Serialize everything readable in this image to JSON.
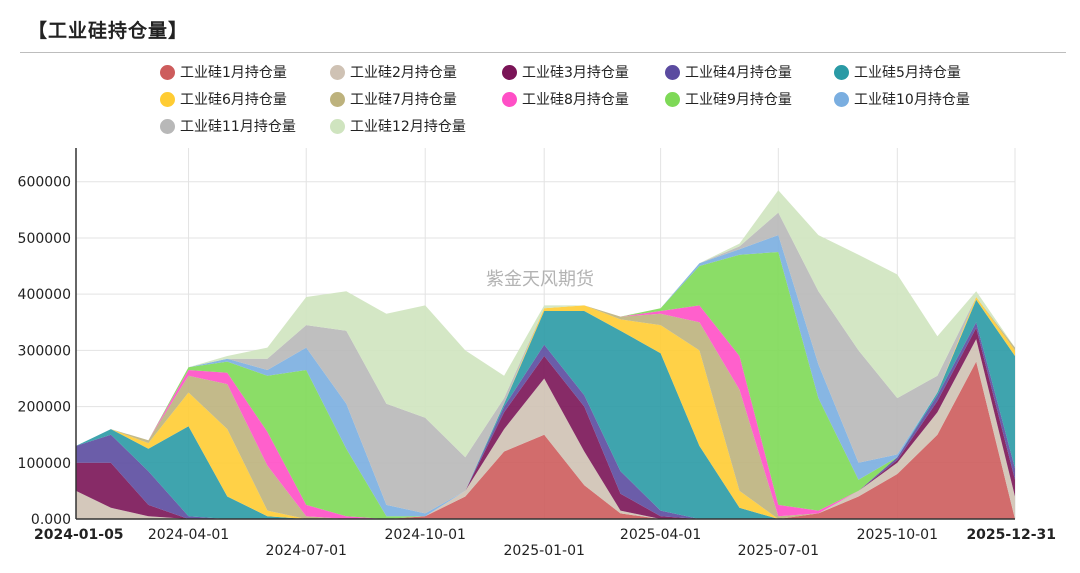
{
  "title": "【工业硅持仓量】",
  "watermark": "紫金天风期货",
  "chart_data": {
    "type": "area",
    "stacked": true,
    "title": "【工业硅持仓量】",
    "xlabel": "",
    "ylabel": "",
    "ylim": [
      0,
      660000
    ],
    "yticks": [
      "0.000",
      "100000",
      "200000",
      "300000",
      "400000",
      "500000",
      "600000"
    ],
    "ytick_values": [
      0,
      100000,
      200000,
      300000,
      400000,
      500000,
      600000
    ],
    "x_start": "2024-01-05",
    "x_end": "2025-12-31",
    "xticks": [
      "2024-01-05",
      "2024-04-01",
      "2024-07-01",
      "2024-10-01",
      "2025-01-01",
      "2025-04-01",
      "2025-07-01",
      "2025-10-01",
      "2025-12-31"
    ],
    "grid": true,
    "legend_position": "top",
    "x": [
      "2024-01-05",
      "2024-02-01",
      "2024-03-01",
      "2024-04-01",
      "2024-05-01",
      "2024-06-01",
      "2024-07-01",
      "2024-08-01",
      "2024-09-01",
      "2024-10-01",
      "2024-11-01",
      "2024-12-01",
      "2025-01-01",
      "2025-02-01",
      "2025-03-01",
      "2025-04-01",
      "2025-05-01",
      "2025-06-01",
      "2025-07-01",
      "2025-08-01",
      "2025-09-01",
      "2025-10-01",
      "2025-11-01",
      "2025-12-01",
      "2025-12-31"
    ],
    "series": [
      {
        "name": "工业硅1月持仓量",
        "color": "#cd5c5c",
        "values": [
          0,
          0,
          0,
          0,
          0,
          0,
          0,
          0,
          0,
          5000,
          40000,
          120000,
          150000,
          60000,
          10000,
          0,
          0,
          0,
          0,
          10000,
          40000,
          80000,
          150000,
          280000,
          0
        ]
      },
      {
        "name": "工业硅2月持仓量",
        "color": "#cfc2b4",
        "values": [
          50000,
          20000,
          5000,
          0,
          0,
          0,
          0,
          0,
          0,
          0,
          10000,
          40000,
          100000,
          60000,
          5000,
          0,
          0,
          0,
          0,
          0,
          10000,
          20000,
          40000,
          40000,
          40000
        ]
      },
      {
        "name": "工业硅3月持仓量",
        "color": "#7a1457",
        "values": [
          50000,
          80000,
          20000,
          0,
          0,
          0,
          0,
          0,
          0,
          0,
          0,
          30000,
          40000,
          80000,
          30000,
          5000,
          0,
          0,
          0,
          0,
          0,
          5000,
          20000,
          20000,
          30000
        ]
      },
      {
        "name": "工业硅4月持仓量",
        "color": "#5b4ba0",
        "values": [
          30000,
          50000,
          60000,
          5000,
          0,
          0,
          0,
          0,
          0,
          0,
          0,
          10000,
          20000,
          20000,
          40000,
          10000,
          0,
          0,
          0,
          0,
          0,
          5000,
          10000,
          10000,
          20000
        ]
      },
      {
        "name": "工业硅5月持仓量",
        "color": "#2a9aa5",
        "values": [
          0,
          10000,
          40000,
          160000,
          40000,
          5000,
          0,
          0,
          0,
          0,
          0,
          5000,
          60000,
          150000,
          250000,
          280000,
          130000,
          20000,
          0,
          0,
          0,
          0,
          5000,
          40000,
          200000
        ]
      },
      {
        "name": "工业硅6月持仓量",
        "color": "#ffcc33",
        "values": [
          0,
          0,
          10000,
          60000,
          120000,
          10000,
          0,
          0,
          0,
          0,
          0,
          0,
          5000,
          10000,
          20000,
          50000,
          170000,
          30000,
          0,
          0,
          0,
          0,
          0,
          5000,
          10000
        ]
      },
      {
        "name": "工业硅7月持仓量",
        "color": "#bdb27d",
        "values": [
          0,
          0,
          5000,
          30000,
          80000,
          80000,
          5000,
          0,
          0,
          0,
          0,
          0,
          0,
          0,
          5000,
          20000,
          50000,
          180000,
          5000,
          0,
          0,
          0,
          0,
          0,
          5000
        ]
      },
      {
        "name": "工业硅8月持仓量",
        "color": "#ff4fc6",
        "values": [
          0,
          0,
          0,
          10000,
          20000,
          60000,
          20000,
          5000,
          0,
          0,
          0,
          0,
          0,
          0,
          0,
          5000,
          30000,
          60000,
          20000,
          5000,
          0,
          0,
          0,
          0,
          0
        ]
      },
      {
        "name": "工业硅9月持仓量",
        "color": "#7ed957",
        "values": [
          0,
          0,
          0,
          5000,
          20000,
          100000,
          240000,
          120000,
          5000,
          0,
          0,
          0,
          0,
          0,
          0,
          5000,
          70000,
          180000,
          450000,
          200000,
          20000,
          0,
          0,
          0,
          0
        ]
      },
      {
        "name": "工业硅10月持仓量",
        "color": "#7aaee0",
        "values": [
          0,
          0,
          0,
          0,
          5000,
          10000,
          40000,
          80000,
          20000,
          5000,
          0,
          0,
          0,
          0,
          0,
          0,
          5000,
          10000,
          30000,
          60000,
          30000,
          5000,
          0,
          0,
          0
        ]
      },
      {
        "name": "工业硅11月持仓量",
        "color": "#b8b8b8",
        "values": [
          0,
          0,
          0,
          0,
          0,
          20000,
          40000,
          130000,
          180000,
          170000,
          60000,
          10000,
          0,
          0,
          0,
          0,
          0,
          5000,
          40000,
          130000,
          200000,
          100000,
          30000,
          0,
          0
        ]
      },
      {
        "name": "工业硅12月持仓量",
        "color": "#cfe4bf",
        "values": [
          0,
          0,
          0,
          0,
          5000,
          20000,
          50000,
          70000,
          160000,
          200000,
          190000,
          40000,
          5000,
          0,
          0,
          0,
          0,
          5000,
          40000,
          100000,
          170000,
          220000,
          70000,
          10000,
          0
        ]
      }
    ]
  }
}
